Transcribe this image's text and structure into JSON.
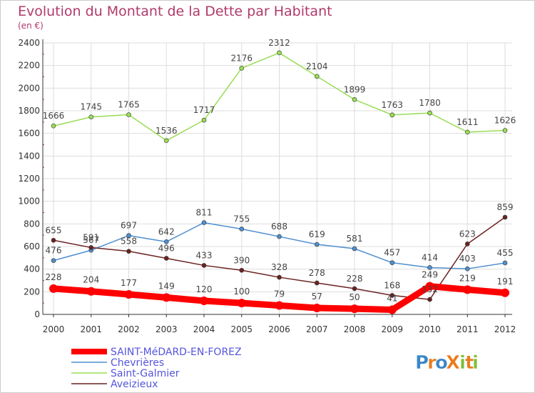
{
  "chart_data": {
    "type": "line",
    "title": "Evolution du Montant de la Dette par Habitant",
    "unit_label": "(en €)",
    "xlabel": "",
    "ylabel": "",
    "categories": [
      "2000",
      "2001",
      "2002",
      "2003",
      "2004",
      "2005",
      "2006",
      "2007",
      "2008",
      "2009",
      "2010",
      "2011",
      "2012"
    ],
    "ylim": [
      0,
      2400
    ],
    "yticks": [
      0,
      200,
      400,
      600,
      800,
      1000,
      1200,
      1400,
      1600,
      1800,
      2000,
      2200,
      2400
    ],
    "grid": true,
    "legend_position": "bottom-left",
    "series": [
      {
        "key": "saint_medard",
        "name": "SAINT-MéDARD-EN-FOREZ",
        "color": "#ff0000",
        "values": [
          228,
          204,
          177,
          149,
          120,
          100,
          79,
          57,
          50,
          41,
          249,
          219,
          191
        ]
      },
      {
        "key": "chevrieres",
        "name": "Chevrières",
        "color": "#4f8fd0",
        "values": [
          476,
          567,
          697,
          642,
          811,
          755,
          688,
          619,
          581,
          457,
          414,
          403,
          455
        ]
      },
      {
        "key": "saint_galmier",
        "name": "Saint-Galmier",
        "color": "#99dd55",
        "values": [
          1666,
          1745,
          1765,
          1536,
          1717,
          2176,
          2312,
          2104,
          1899,
          1763,
          1780,
          1611,
          1626
        ]
      },
      {
        "key": "aveizieux",
        "name": "Aveizieux",
        "color": "#6b2222",
        "values": [
          655,
          591,
          558,
          496,
          433,
          390,
          328,
          278,
          228,
          168,
          132,
          623,
          859
        ]
      }
    ],
    "data_labels": {
      "saint_medard": [
        "228",
        "204",
        "177",
        "149",
        "120",
        "100",
        "79",
        "57",
        "50",
        "41",
        "249",
        "219",
        "191"
      ],
      "chevrieres": [
        "476",
        "567",
        "697",
        "642",
        "811",
        "755",
        "688",
        "619",
        "581",
        "457",
        "414",
        "403",
        "455"
      ],
      "saint_galmier": [
        "1666",
        "1745",
        "1765",
        "1536",
        "1717",
        "2176",
        "2312",
        "2104",
        "1899",
        "1763",
        "1780",
        "1611",
        "1626"
      ],
      "aveizieux": [
        "655",
        "591",
        "558",
        "496",
        "433",
        "390",
        "328",
        "278",
        "228",
        "168",
        "132",
        "623",
        "859"
      ]
    }
  },
  "colors": {
    "title": "#b03a6a",
    "legend_text": "#5555dd",
    "axis": "#333333",
    "tick_text": "#333333",
    "label_text": "#444444",
    "grid": "#dddddd",
    "accent_ticks": "#cc3333"
  },
  "brand": {
    "logo_text": "ProXiti",
    "letters": [
      "P",
      "r",
      "o",
      "X",
      "i",
      "t",
      "i"
    ],
    "letter_colors": [
      "#3a86c8",
      "#e87c1c",
      "#3a86c8",
      "#e87c1c",
      "#7cbf3a",
      "#e87c1c",
      "#7cbf3a"
    ]
  }
}
